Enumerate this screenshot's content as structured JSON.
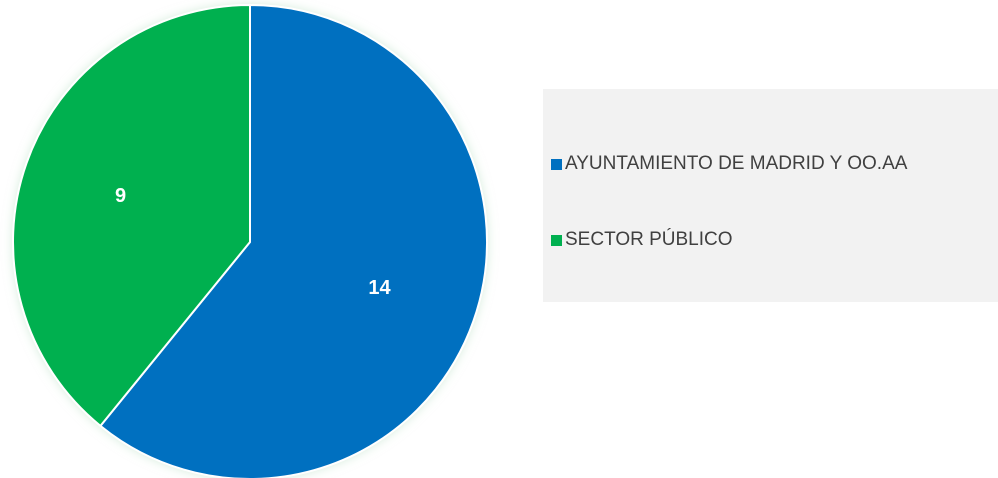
{
  "chart_data": {
    "type": "pie",
    "title": "",
    "series": [
      {
        "values": [
          14,
          9
        ]
      }
    ],
    "categories": [
      "AYUNTAMIENTO DE MADRID Y OO.AA",
      "SECTOR PÚBLICO"
    ],
    "colors": [
      "#0070c0",
      "#00b050"
    ],
    "data_labels": [
      "14",
      "9"
    ],
    "legend_position": "right"
  }
}
